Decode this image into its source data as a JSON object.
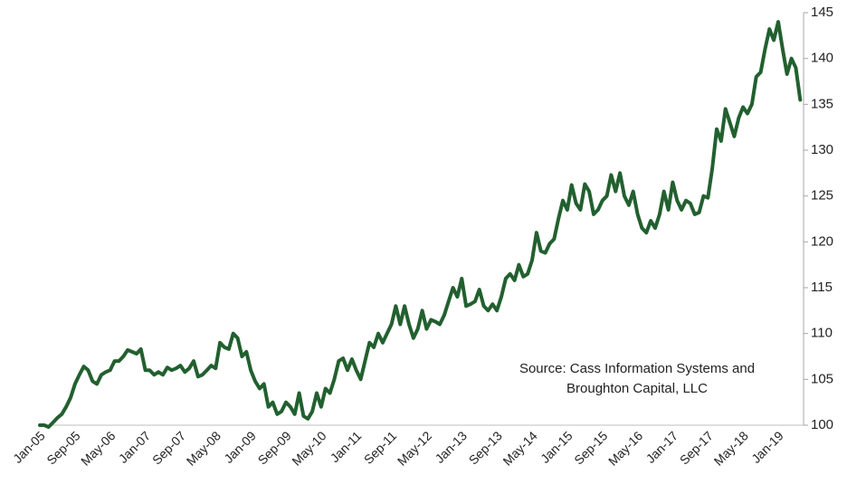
{
  "chart_data": {
    "type": "line",
    "categories": [
      "Jan-05",
      null,
      null,
      null,
      null,
      null,
      null,
      null,
      "Sep-05",
      null,
      null,
      null,
      null,
      null,
      null,
      null,
      "May-06",
      null,
      null,
      null,
      null,
      null,
      null,
      null,
      "Jan-07",
      null,
      null,
      null,
      null,
      null,
      null,
      null,
      "Sep-07",
      null,
      null,
      null,
      null,
      null,
      null,
      null,
      "May-08",
      null,
      null,
      null,
      null,
      null,
      null,
      null,
      "Jan-09",
      null,
      null,
      null,
      null,
      null,
      null,
      null,
      "Sep-09",
      null,
      null,
      null,
      null,
      null,
      null,
      null,
      "May-10",
      null,
      null,
      null,
      null,
      null,
      null,
      null,
      "Jan-11",
      null,
      null,
      null,
      null,
      null,
      null,
      null,
      "Sep-11",
      null,
      null,
      null,
      null,
      null,
      null,
      null,
      "May-12",
      null,
      null,
      null,
      null,
      null,
      null,
      null,
      "Jan-13",
      null,
      null,
      null,
      null,
      null,
      null,
      null,
      "Sep-13",
      null,
      null,
      null,
      null,
      null,
      null,
      null,
      "May-14",
      null,
      null,
      null,
      null,
      null,
      null,
      null,
      "Jan-15",
      null,
      null,
      null,
      null,
      null,
      null,
      null,
      "Sep-15",
      null,
      null,
      null,
      null,
      null,
      null,
      null,
      "May-16",
      null,
      null,
      null,
      null,
      null,
      null,
      null,
      "Jan-17",
      null,
      null,
      null,
      null,
      null,
      null,
      null,
      "Sep-17",
      null,
      null,
      null,
      null,
      null,
      null,
      null,
      "May-18",
      null,
      null,
      null,
      null,
      null,
      null,
      null,
      "Jan-19",
      null,
      null,
      null,
      null,
      null
    ],
    "values": [
      100,
      100,
      99.8,
      100.3,
      100.8,
      101.2,
      102,
      103,
      104.5,
      105.5,
      106.4,
      106,
      104.8,
      104.5,
      105.5,
      105.8,
      106,
      107,
      107,
      107.5,
      108.2,
      108,
      107.8,
      108.3,
      106,
      106,
      105.5,
      105.8,
      105.5,
      106.3,
      106,
      106.2,
      106.5,
      105.8,
      106.2,
      107,
      105.3,
      105.5,
      106,
      106.5,
      106.2,
      109,
      108.5,
      108.3,
      110,
      109.5,
      107.5,
      108,
      106,
      104.8,
      104,
      104.5,
      102,
      102.5,
      101.2,
      101.5,
      102.5,
      102,
      101.2,
      103.5,
      101,
      100.7,
      101.5,
      103.5,
      102,
      104,
      103.5,
      105,
      107,
      107.3,
      106,
      107.2,
      106,
      105,
      107,
      109,
      108.5,
      110,
      109,
      110,
      111,
      113,
      111,
      113,
      111,
      109.5,
      110.5,
      112.5,
      110.5,
      111.5,
      111.3,
      111,
      112,
      113.5,
      115,
      114,
      116,
      113,
      113.2,
      113.5,
      114.8,
      113,
      112.5,
      113.2,
      112.5,
      114,
      116,
      116.5,
      115.8,
      117.5,
      116.2,
      116.5,
      118,
      121,
      119,
      118.8,
      119.8,
      120.3,
      122.5,
      124.5,
      123.5,
      126.2,
      124.2,
      123.5,
      126.3,
      125.5,
      123,
      123.5,
      124.5,
      125,
      127.3,
      125.5,
      127.5,
      125,
      124,
      125.5,
      123,
      121.5,
      121,
      122.3,
      121.5,
      123,
      125.5,
      123.5,
      126.5,
      124.5,
      123.5,
      124.5,
      124.2,
      123,
      123.2,
      125,
      124.8,
      128,
      132.3,
      131,
      134.5,
      133,
      131.5,
      133.5,
      134.7,
      134,
      135,
      138,
      138.5,
      141,
      143.2,
      142,
      144,
      141,
      138.3,
      140,
      139,
      135.5
    ],
    "color": "#22602f",
    "ylim": [
      100,
      145
    ],
    "yticks": [
      100,
      105,
      110,
      115,
      120,
      125,
      130,
      135,
      140,
      145
    ],
    "annotation": [
      "Source: Cass Information Systems and",
      "Broughton Capital, LLC"
    ]
  }
}
